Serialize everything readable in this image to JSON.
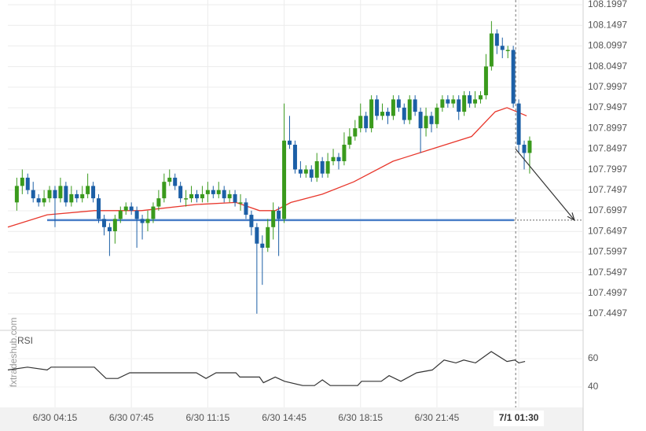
{
  "chart_data": {
    "type": "candlestick",
    "watermark": "fxtradeshub.com",
    "xlim": [
      2.09,
      28.45
    ],
    "xticks": [
      {
        "value": 4.25,
        "label": "6/30 04:15"
      },
      {
        "value": 7.75,
        "label": "6/30 07:45"
      },
      {
        "value": 11.25,
        "label": "6/30 11:15"
      },
      {
        "value": 14.75,
        "label": "6/30 14:45"
      },
      {
        "value": 18.25,
        "label": "6/30 18:15"
      },
      {
        "value": 21.75,
        "label": "6/30 21:45"
      },
      {
        "value": 25.5,
        "label": "7/1 01:30"
      }
    ],
    "ylim": [
      107.4134,
      108.2112
    ],
    "yticks": [
      108.1997,
      108.1497,
      108.0997,
      108.0497,
      107.9997,
      107.9497,
      107.8997,
      107.8497,
      107.7997,
      107.7497,
      107.6997,
      107.6497,
      107.5997,
      107.5497,
      107.4997,
      107.4497
    ],
    "grid": true,
    "up_color": "#3a9a1c",
    "down_color": "#1c5fa6",
    "x": [
      2.5,
      2.75,
      3,
      3.25,
      3.5,
      3.75,
      4,
      4.25,
      4.5,
      4.75,
      5,
      5.25,
      5.5,
      5.75,
      6,
      6.25,
      6.5,
      6.75,
      7,
      7.25,
      7.5,
      7.75,
      8,
      8.25,
      8.5,
      8.75,
      9,
      9.25,
      9.5,
      9.75,
      10,
      10.25,
      10.5,
      10.75,
      11,
      11.25,
      11.5,
      11.75,
      12,
      12.25,
      12.5,
      12.75,
      13,
      13.25,
      13.5,
      13.75,
      14,
      14.25,
      14.5,
      14.75,
      15,
      15.25,
      15.5,
      15.75,
      16,
      16.25,
      16.5,
      16.75,
      17,
      17.25,
      17.5,
      17.75,
      18,
      18.25,
      18.5,
      18.75,
      19,
      19.25,
      19.5,
      19.75,
      20,
      20.25,
      20.5,
      20.75,
      21,
      21.25,
      21.5,
      21.75,
      22,
      22.25,
      22.5,
      22.75,
      23,
      23.25,
      23.5,
      23.75,
      24,
      24.25,
      24.5,
      24.75,
      25,
      25.25,
      25.5,
      25.75,
      26
    ],
    "open": [
      107.72,
      107.76,
      107.78,
      107.75,
      107.73,
      107.72,
      107.73,
      107.75,
      107.73,
      107.76,
      107.72,
      107.74,
      107.73,
      107.74,
      107.76,
      107.73,
      107.68,
      107.66,
      107.65,
      107.68,
      107.7,
      107.71,
      107.7,
      107.68,
      107.67,
      107.68,
      107.71,
      107.73,
      107.77,
      107.78,
      107.76,
      107.73,
      107.73,
      107.74,
      107.73,
      107.74,
      107.75,
      107.74,
      107.75,
      107.73,
      107.74,
      107.72,
      107.72,
      107.69,
      107.66,
      107.62,
      107.61,
      107.66,
      107.7,
      107.68,
      107.87,
      107.86,
      107.8,
      107.79,
      107.8,
      107.78,
      107.82,
      107.79,
      107.82,
      107.83,
      107.82,
      107.86,
      107.88,
      107.9,
      107.93,
      107.9,
      107.97,
      107.93,
      107.94,
      107.93,
      107.97,
      107.95,
      107.92,
      107.97,
      107.94,
      107.9,
      107.93,
      107.91,
      107.95,
      107.97,
      107.96,
      107.97,
      107.94,
      107.98,
      107.96,
      107.97,
      107.98,
      108.05,
      108.13,
      108.1,
      108.09,
      108.09,
      107.96,
      107.86,
      107.84
    ],
    "high": [
      107.78,
      107.8,
      107.79,
      107.77,
      107.74,
      107.75,
      107.76,
      107.76,
      107.78,
      107.77,
      107.76,
      107.75,
      107.76,
      107.79,
      107.77,
      107.74,
      107.69,
      107.67,
      107.69,
      107.71,
      107.72,
      107.72,
      107.71,
      107.69,
      107.7,
      107.72,
      107.75,
      107.79,
      107.8,
      107.79,
      107.77,
      107.75,
      107.76,
      107.75,
      107.76,
      107.77,
      107.76,
      107.77,
      107.76,
      107.75,
      107.75,
      107.74,
      107.73,
      107.7,
      107.67,
      107.64,
      107.68,
      107.72,
      107.71,
      107.96,
      107.93,
      107.87,
      107.82,
      107.81,
      107.81,
      107.84,
      107.83,
      107.84,
      107.85,
      107.84,
      107.89,
      107.9,
      107.92,
      107.96,
      107.94,
      107.98,
      107.98,
      107.96,
      107.95,
      107.98,
      107.98,
      107.96,
      107.98,
      107.98,
      107.95,
      107.95,
      107.94,
      107.96,
      107.98,
      107.98,
      107.98,
      107.98,
      107.99,
      107.99,
      107.99,
      107.99,
      108.08,
      108.16,
      108.14,
      108.12,
      108.1,
      108.1,
      107.97,
      107.87,
      107.88
    ],
    "low": [
      107.7,
      107.74,
      107.74,
      107.72,
      107.71,
      107.71,
      107.72,
      107.66,
      107.72,
      107.71,
      107.71,
      107.72,
      107.72,
      107.73,
      107.72,
      107.67,
      107.64,
      107.59,
      107.62,
      107.67,
      107.69,
      107.69,
      107.61,
      107.63,
      107.65,
      107.67,
      107.7,
      107.72,
      107.76,
      107.75,
      107.72,
      107.71,
      107.72,
      107.72,
      107.72,
      107.72,
      107.73,
      107.73,
      107.72,
      107.72,
      107.71,
      107.7,
      107.68,
      107.64,
      107.45,
      107.52,
      107.6,
      107.63,
      107.59,
      107.67,
      107.85,
      107.79,
      107.78,
      107.78,
      107.77,
      107.77,
      107.78,
      107.78,
      107.81,
      107.8,
      107.81,
      107.85,
      107.87,
      107.89,
      107.89,
      107.89,
      107.92,
      107.92,
      107.91,
      107.92,
      107.94,
      107.91,
      107.91,
      107.93,
      107.84,
      107.88,
      107.89,
      107.9,
      107.94,
      107.95,
      107.95,
      107.92,
      107.93,
      107.95,
      107.95,
      107.96,
      107.97,
      108.04,
      108.08,
      108.07,
      108.07,
      107.95,
      107.84,
      107.8,
      107.79
    ],
    "close": [
      107.76,
      107.78,
      107.75,
      107.73,
      107.72,
      107.73,
      107.75,
      107.73,
      107.76,
      107.72,
      107.74,
      107.73,
      107.74,
      107.76,
      107.73,
      107.68,
      107.66,
      107.65,
      107.68,
      107.7,
      107.71,
      107.7,
      107.68,
      107.67,
      107.68,
      107.71,
      107.73,
      107.77,
      107.78,
      107.76,
      107.73,
      107.73,
      107.74,
      107.73,
      107.74,
      107.75,
      107.74,
      107.75,
      107.73,
      107.74,
      107.72,
      107.72,
      107.69,
      107.66,
      107.62,
      107.61,
      107.66,
      107.7,
      107.68,
      107.87,
      107.86,
      107.8,
      107.79,
      107.8,
      107.78,
      107.82,
      107.79,
      107.82,
      107.83,
      107.82,
      107.86,
      107.88,
      107.9,
      107.93,
      107.9,
      107.97,
      107.93,
      107.94,
      107.93,
      107.97,
      107.95,
      107.92,
      107.97,
      107.94,
      107.9,
      107.93,
      107.91,
      107.95,
      107.97,
      107.96,
      107.97,
      107.94,
      107.98,
      107.96,
      107.97,
      107.98,
      108.05,
      108.13,
      108.1,
      108.09,
      108.09,
      107.96,
      107.86,
      107.84,
      107.87
    ],
    "ma": {
      "color": "#e8372c",
      "x": [
        2.09,
        3.89,
        6.05,
        8.21,
        10.73,
        12.54,
        13.62,
        14.34,
        15.06,
        16.5,
        17.94,
        19.74,
        21.54,
        23.34,
        24.42,
        24.96,
        25.86
      ],
      "values": [
        107.66,
        107.69,
        107.7,
        107.7,
        107.715,
        107.72,
        107.7,
        107.7,
        107.72,
        107.74,
        107.77,
        107.82,
        107.85,
        107.88,
        107.94,
        107.95,
        107.93
      ]
    },
    "support": {
      "color": "#4a7fc8",
      "value": 107.677,
      "x": [
        3.89,
        25.28
      ]
    },
    "forecast": {
      "x": [
        25.35,
        28.05
      ],
      "values": [
        107.85,
        107.677
      ]
    },
    "cursor_x": 25.36,
    "rsi": {
      "title": "RSI",
      "color": "#333333",
      "ylim": [
        27.2,
        77.2
      ],
      "yticks": [
        60,
        40
      ],
      "x": [
        2.09,
        2.99,
        3.89,
        4.07,
        6.05,
        6.59,
        7.13,
        7.67,
        10.73,
        11.17,
        11.63,
        12.54,
        12.72,
        13.62,
        13.8,
        14.34,
        14.77,
        15.6,
        16.14,
        16.5,
        16.86,
        18.12,
        18.3,
        19.2,
        19.56,
        20.1,
        20.82,
        21.54,
        22.08,
        22.62,
        22.98,
        23.52,
        24.24,
        24.96,
        25.32,
        25.5,
        25.79
      ],
      "values": [
        52,
        54,
        52,
        54,
        54,
        46,
        46,
        50,
        50,
        46,
        50,
        50,
        47,
        47,
        43,
        47,
        44,
        41,
        41,
        45,
        41,
        41,
        44,
        44,
        48,
        44,
        50,
        52,
        59,
        57,
        59,
        57,
        65,
        58,
        59,
        57,
        58
      ]
    }
  }
}
